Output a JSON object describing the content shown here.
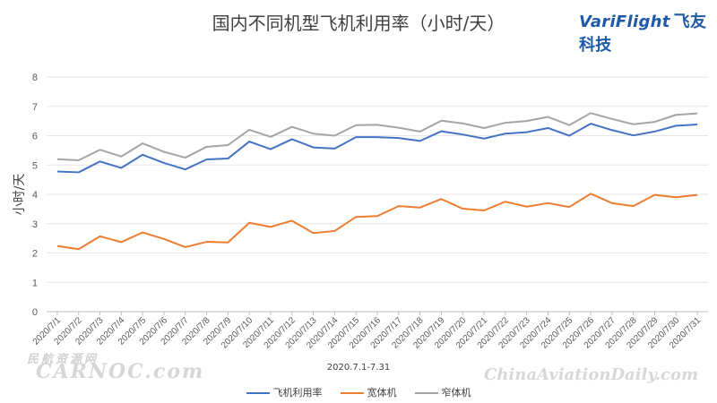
{
  "header": {
    "title": "国内不同机型飞机利用率（小时/天）",
    "brand_en": "VariFlight",
    "brand_cn": "飞友科技"
  },
  "watermarks": {
    "left_cn": "民航资源网",
    "left_en": "CARNOC.com",
    "right_en": "ChinaAviationDaily.com"
  },
  "colors": {
    "飞机利用率": "#4472c4",
    "宽体机": "#ed7d31",
    "窄体机": "#a5a5a5"
  },
  "chart_data": {
    "type": "line",
    "title": "国内不同机型飞机利用率（小时/天）",
    "xlabel": "2020.7.1-7.31",
    "ylabel": "小时/天",
    "ylim": [
      0,
      8
    ],
    "yticks": [
      0,
      1,
      2,
      3,
      4,
      5,
      6,
      7,
      8
    ],
    "grid": true,
    "legend": "bottom",
    "categories": [
      "2020/7/1",
      "2020/7/2",
      "2020/7/3",
      "2020/7/4",
      "2020/7/5",
      "2020/7/6",
      "2020/7/7",
      "2020/7/8",
      "2020/7/9",
      "2020/7/10",
      "2020/7/11",
      "2020/7/12",
      "2020/7/13",
      "2020/7/14",
      "2020/7/15",
      "2020/7/16",
      "2020/7/17",
      "2020/7/18",
      "2020/7/19",
      "2020/7/20",
      "2020/7/21",
      "2020/7/22",
      "2020/7/23",
      "2020/7/24",
      "2020/7/25",
      "2020/7/26",
      "2020/7/27",
      "2020/7/28",
      "2020/7/29",
      "2020/7/30",
      "2020/7/31"
    ],
    "series": [
      {
        "name": "飞机利用率",
        "values": [
          4.78,
          4.75,
          5.12,
          4.9,
          5.35,
          5.07,
          4.85,
          5.19,
          5.22,
          5.8,
          5.54,
          5.88,
          5.6,
          5.56,
          5.95,
          5.95,
          5.92,
          5.82,
          6.15,
          6.04,
          5.9,
          6.07,
          6.12,
          6.26,
          6.0,
          6.41,
          6.19,
          6.01,
          6.14,
          6.34,
          6.38
        ]
      },
      {
        "name": "宽体机",
        "values": [
          2.24,
          2.13,
          2.57,
          2.37,
          2.7,
          2.48,
          2.2,
          2.38,
          2.36,
          3.03,
          2.89,
          3.1,
          2.68,
          2.75,
          3.23,
          3.26,
          3.6,
          3.55,
          3.84,
          3.51,
          3.45,
          3.75,
          3.58,
          3.7,
          3.57,
          4.02,
          3.7,
          3.6,
          3.98,
          3.9,
          3.98
        ]
      },
      {
        "name": "窄体机",
        "values": [
          5.2,
          5.16,
          5.52,
          5.29,
          5.74,
          5.45,
          5.25,
          5.62,
          5.68,
          6.2,
          5.96,
          6.3,
          6.07,
          6.0,
          6.36,
          6.37,
          6.27,
          6.14,
          6.51,
          6.42,
          6.26,
          6.44,
          6.5,
          6.64,
          6.36,
          6.77,
          6.57,
          6.39,
          6.47,
          6.71,
          6.76
        ]
      }
    ]
  }
}
